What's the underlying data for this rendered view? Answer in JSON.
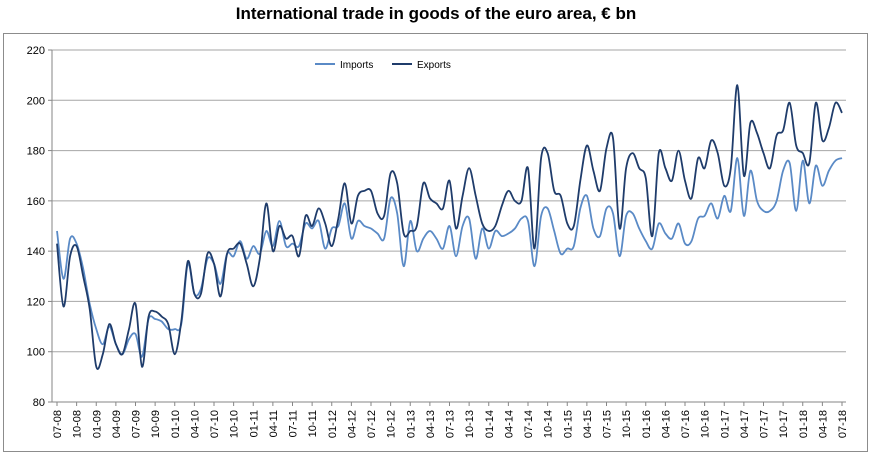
{
  "chart_data": {
    "type": "line",
    "title": "International trade in goods of the euro area, € bn",
    "xlabel": "",
    "ylabel": "",
    "ylim": [
      80,
      220
    ],
    "yticks": [
      80,
      100,
      120,
      140,
      160,
      180,
      200,
      220
    ],
    "grid": true,
    "legend_placement": "top-center",
    "x_start": "07-08",
    "x_end": "07-18",
    "x_frequency": "monthly",
    "xtick_labels": [
      "07-08",
      "10-08",
      "01-09",
      "04-09",
      "07-09",
      "10-09",
      "01-10",
      "04-10",
      "07-10",
      "10-10",
      "01-11",
      "04-11",
      "07-11",
      "10-11",
      "01-12",
      "04-12",
      "07-12",
      "10-12",
      "01-13",
      "04-13",
      "07-13",
      "10-13",
      "01-14",
      "04-14",
      "07-14",
      "10-14",
      "01-15",
      "04-15",
      "07-15",
      "10-15",
      "01-16",
      "04-16",
      "07-16",
      "10-16",
      "01-17",
      "04-17",
      "07-17",
      "10-17",
      "01-18",
      "04-18",
      "07-18"
    ],
    "series": [
      {
        "name": "Imports",
        "color": "#5a8ac6",
        "values": [
          148,
          129,
          145,
          143,
          133,
          119,
          109,
          103,
          110,
          103,
          99,
          105,
          107,
          98,
          113,
          113,
          112,
          109,
          109,
          111,
          135,
          123,
          125,
          137,
          135,
          127,
          139,
          138,
          144,
          137,
          142,
          139,
          148,
          142,
          152,
          142,
          143,
          142,
          151,
          149,
          152,
          141,
          149,
          150,
          159,
          145,
          152,
          150,
          149,
          147,
          145,
          161,
          155,
          134,
          152,
          140,
          145,
          148,
          145,
          141,
          150,
          138,
          150,
          153,
          137,
          149,
          141,
          148,
          146,
          147,
          149,
          153,
          152,
          134,
          154,
          157,
          148,
          139,
          141,
          142,
          157,
          162,
          149,
          146,
          157,
          155,
          138,
          154,
          155,
          149,
          144,
          141,
          151,
          147,
          145,
          151,
          143,
          144,
          153,
          154,
          159,
          153,
          162,
          156,
          177,
          154,
          172,
          160,
          156,
          156,
          160,
          172,
          175,
          156,
          176,
          159,
          174,
          166,
          172,
          176,
          177
        ]
      },
      {
        "name": "Exports",
        "color": "#1f3c6b",
        "values": [
          143,
          118,
          138,
          142,
          130,
          117,
          94,
          99,
          111,
          103,
          99,
          109,
          119,
          94,
          114,
          116,
          114,
          111,
          99,
          112,
          136,
          123,
          123,
          139,
          135,
          122,
          139,
          141,
          143,
          135,
          126,
          137,
          159,
          140,
          150,
          145,
          146,
          138,
          154,
          150,
          157,
          151,
          142,
          153,
          167,
          151,
          162,
          164,
          164,
          155,
          154,
          171,
          167,
          147,
          148,
          150,
          167,
          161,
          159,
          157,
          168,
          149,
          162,
          173,
          162,
          151,
          148,
          150,
          158,
          164,
          160,
          160,
          173,
          141,
          177,
          179,
          164,
          162,
          151,
          150,
          168,
          182,
          172,
          164,
          181,
          185,
          149,
          173,
          179,
          173,
          169,
          146,
          179,
          173,
          168,
          180,
          168,
          161,
          177,
          173,
          184,
          179,
          166,
          173,
          206,
          170,
          191,
          187,
          179,
          173,
          186,
          188,
          199,
          182,
          179,
          175,
          199,
          184,
          189,
          199,
          195
        ]
      }
    ]
  }
}
